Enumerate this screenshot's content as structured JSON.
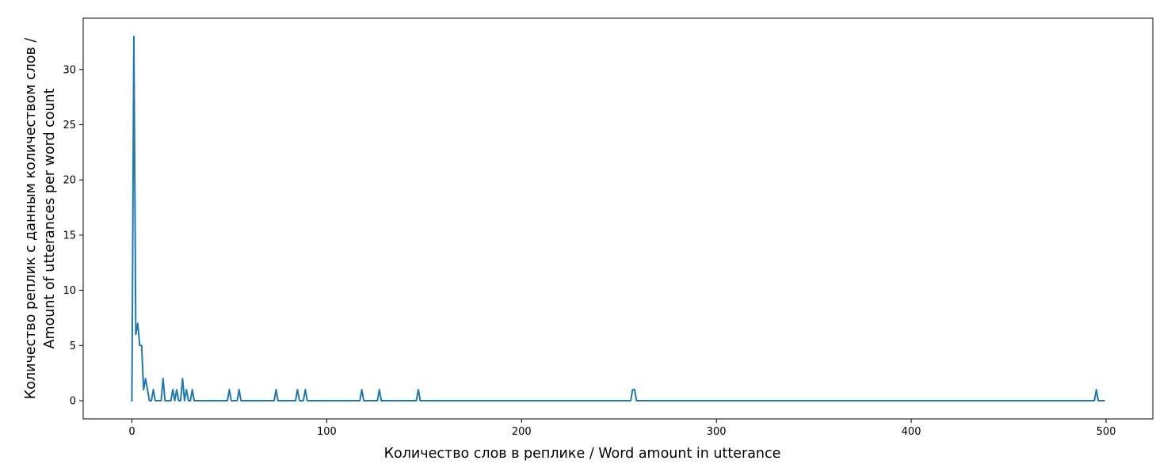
{
  "chart_data": {
    "type": "line",
    "title": "",
    "xlabel": "Количество слов в реплике / Word amount in utterance",
    "ylabel_lines": [
      "Количество реплик с данным количеством слов /",
      "Amount of utterances per word count"
    ],
    "xlim": [
      -25,
      524
    ],
    "ylim": [
      -1.65,
      34.65
    ],
    "xticks": [
      0,
      100,
      200,
      300,
      400,
      500
    ],
    "yticks": [
      0,
      5,
      10,
      15,
      20,
      25,
      30
    ],
    "grid": false,
    "legend": "none",
    "series": [
      {
        "color": "#1f77b4",
        "x": [
          0,
          1,
          2,
          3,
          4,
          5,
          6,
          7,
          8,
          9,
          10,
          11,
          12,
          15,
          16,
          17,
          20,
          21,
          22,
          23,
          24,
          25,
          26,
          27,
          28,
          29,
          30,
          31,
          32,
          49,
          50,
          51,
          54,
          55,
          56,
          73,
          74,
          75,
          84,
          85,
          86,
          88,
          89,
          90,
          117,
          118,
          119,
          126,
          127,
          128,
          146,
          147,
          148,
          256,
          257,
          258,
          259,
          494,
          495,
          496,
          499
        ],
        "y": [
          0,
          33,
          6,
          7,
          5,
          5,
          1,
          2,
          1,
          0,
          0,
          1,
          0,
          0,
          2,
          0,
          0,
          1,
          0,
          1,
          0,
          0,
          2,
          0,
          1,
          0,
          0,
          1,
          0,
          0,
          1,
          0,
          0,
          1,
          0,
          0,
          1,
          0,
          0,
          1,
          0,
          0,
          1,
          0,
          0,
          1,
          0,
          0,
          1,
          0,
          0,
          1,
          0,
          0,
          1,
          1,
          0,
          0,
          1,
          0,
          0
        ]
      }
    ]
  }
}
